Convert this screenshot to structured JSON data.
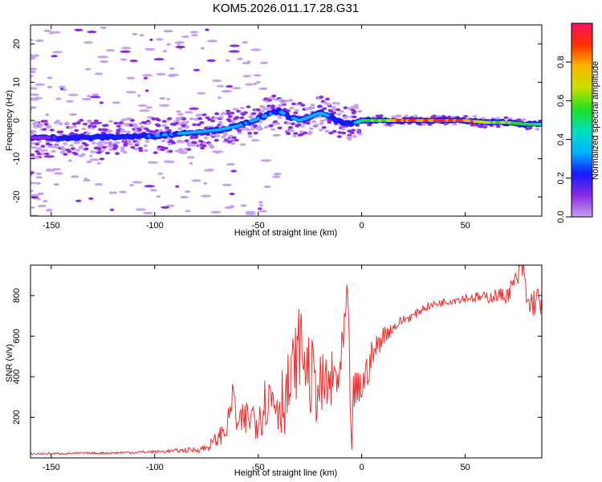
{
  "title": "KOM5.2026.011.17.28.G31",
  "colors": {
    "snr_line": "#ee2e2e",
    "colormap": [
      "#c8a0f0",
      "#8a2be2",
      "#1818ff",
      "#00b4ff",
      "#00e0c0",
      "#20e020",
      "#c8e000",
      "#ffb400",
      "#ff3000",
      "#ff1060"
    ]
  },
  "chart_data": [
    {
      "type": "heatmap",
      "name": "spectrogram",
      "xlabel": "Height of straight line (km)",
      "ylabel": "Frequency (Hz)",
      "xlim": [
        -160,
        87
      ],
      "ylim": [
        -25,
        25
      ],
      "xticks": [
        -150,
        -100,
        -50,
        0,
        50
      ],
      "xtick_labels": [
        "-150",
        "-100",
        "-50",
        "0",
        "50"
      ],
      "yticks": [
        -20,
        -10,
        0,
        10,
        20
      ],
      "ytick_labels": [
        "-20",
        "-10",
        "0",
        "10",
        "20"
      ],
      "ridge": {
        "x": [
          -160,
          -140,
          -120,
          -100,
          -90,
          -80,
          -70,
          -60,
          -55,
          -50,
          -45,
          -40,
          -35,
          -30,
          -25,
          -20,
          -15,
          -10,
          -5,
          0,
          10,
          20,
          30,
          40,
          50,
          60,
          70,
          80,
          87
        ],
        "freq": [
          -4.5,
          -4.5,
          -4.3,
          -4.0,
          -3.5,
          -3.0,
          -2.5,
          -1.5,
          -0.5,
          0.5,
          1.5,
          2.5,
          1.0,
          0.0,
          1.0,
          2.0,
          1.0,
          -0.5,
          -1.0,
          0.0,
          0.0,
          0.0,
          0.0,
          0.0,
          0.0,
          -0.5,
          -0.5,
          -1.0,
          -1.0
        ],
        "amplitude": [
          0.15,
          0.2,
          0.25,
          0.3,
          0.3,
          0.35,
          0.35,
          0.35,
          0.3,
          0.3,
          0.3,
          0.3,
          0.3,
          0.3,
          0.35,
          0.35,
          0.3,
          0.2,
          0.2,
          0.6,
          0.65,
          0.95,
          0.95,
          0.95,
          0.95,
          0.65,
          0.65,
          0.55,
          0.55
        ]
      }
    },
    {
      "type": "colorbar",
      "name": "amplitude-scale",
      "label": "Normalized spectral amplitude",
      "range": [
        0,
        1
      ],
      "ticks": [
        0.0,
        0.2,
        0.4,
        0.6,
        0.8
      ],
      "tick_labels": [
        "0.0",
        "0.2",
        "0.4",
        "0.6",
        "0.8"
      ]
    },
    {
      "type": "line",
      "name": "snr",
      "xlabel": "Height of straight line (km)",
      "ylabel": "SNR (v/v)",
      "xlim": [
        -160,
        87
      ],
      "ylim": [
        0,
        950
      ],
      "xticks": [
        -150,
        -100,
        -50,
        0,
        50
      ],
      "xtick_labels": [
        "-150",
        "-100",
        "-50",
        "0",
        "50"
      ],
      "yticks": [
        200,
        400,
        600,
        800
      ],
      "ytick_labels": [
        "200",
        "400",
        "600",
        "800"
      ],
      "x": [
        -160,
        -140,
        -120,
        -100,
        -90,
        -80,
        -75,
        -70,
        -65,
        -62,
        -60,
        -55,
        -50,
        -45,
        -40,
        -35,
        -30,
        -25,
        -20,
        -15,
        -10,
        -7,
        -6,
        -5,
        -4,
        0,
        5,
        10,
        15,
        20,
        25,
        30,
        40,
        50,
        60,
        65,
        70,
        75,
        78,
        80,
        85,
        87
      ],
      "y": [
        20,
        22,
        25,
        30,
        35,
        40,
        50,
        90,
        150,
        330,
        150,
        200,
        210,
        300,
        280,
        330,
        560,
        400,
        330,
        360,
        420,
        800,
        500,
        30,
        300,
        350,
        500,
        600,
        640,
        680,
        700,
        740,
        770,
        790,
        790,
        800,
        800,
        880,
        950,
        750,
        780,
        760
      ],
      "y_spread": [
        5,
        5,
        6,
        8,
        10,
        15,
        20,
        40,
        60,
        60,
        80,
        100,
        120,
        150,
        180,
        200,
        200,
        200,
        180,
        160,
        160,
        100,
        100,
        40,
        120,
        100,
        80,
        50,
        30,
        25,
        20,
        20,
        20,
        25,
        30,
        35,
        40,
        60,
        80,
        80,
        70,
        60
      ]
    }
  ]
}
